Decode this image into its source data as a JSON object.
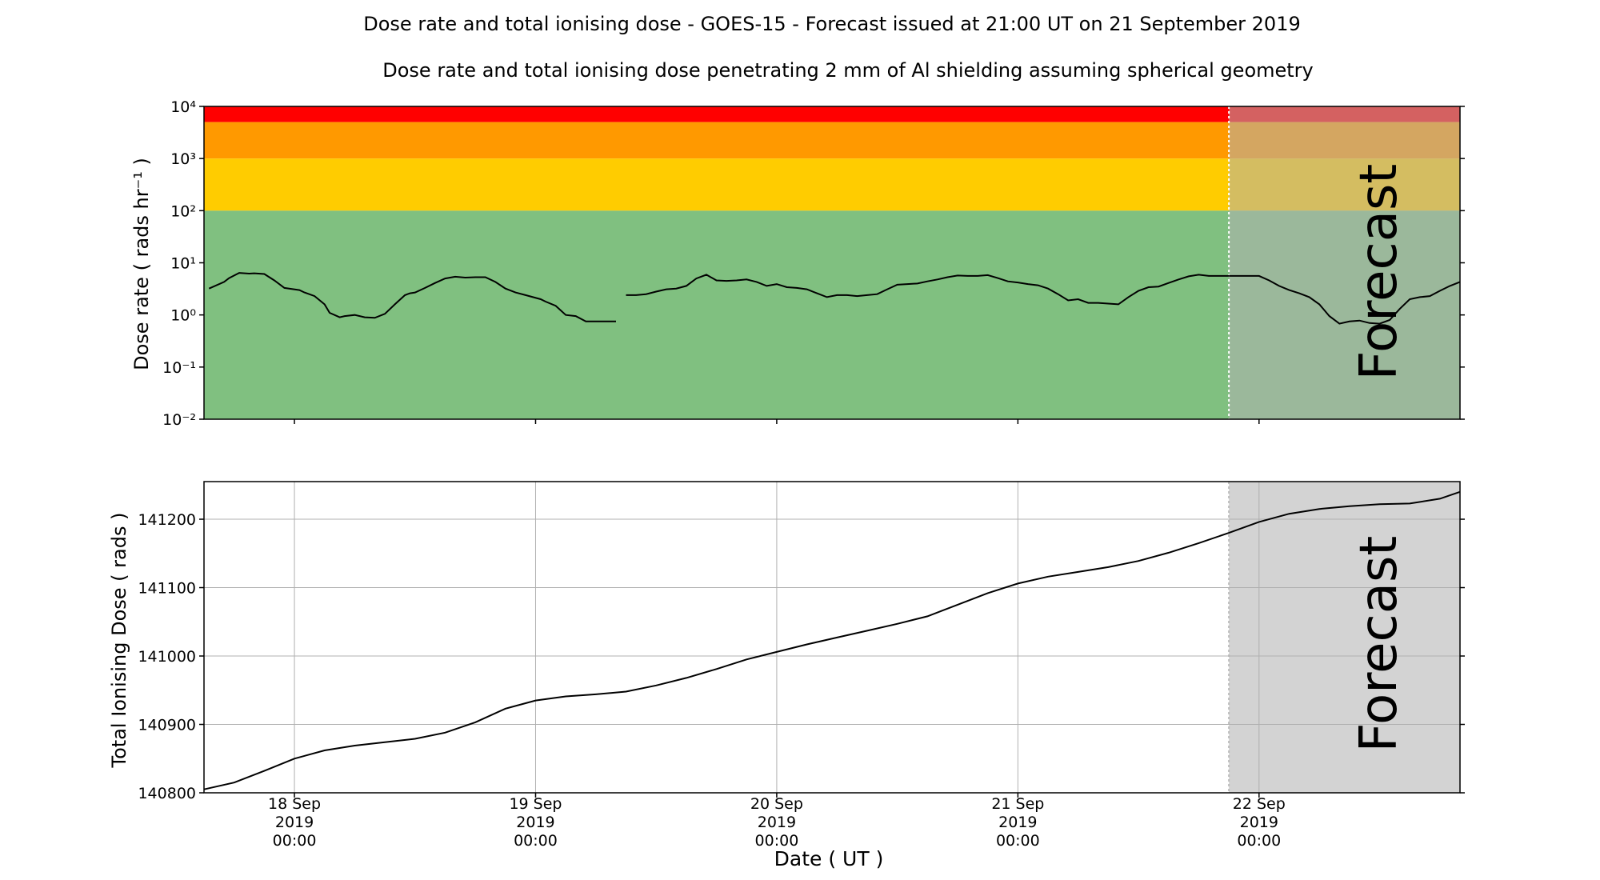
{
  "title": "Dose rate and total ionising dose - GOES-15 - Forecast issued at 21:00 UT on 21 September 2019",
  "subtitle": "Dose rate and total ionising dose penetrating 2 mm of Al shielding assuming spherical geometry",
  "forecast_label": "Forecast",
  "colors": {
    "red": "#ff0000",
    "orange": "#ff9900",
    "yellow": "#ffcc00",
    "green": "#80c080",
    "forecast_overlay": "#b0b0b0",
    "forecast_shade": "#d3d3d3",
    "line": "#000000",
    "grid": "#b0b0b0"
  },
  "chart_data": [
    {
      "type": "line",
      "ylabel": "Dose rate ( rads hr⁻¹ )",
      "yscale": "log",
      "ylim": [
        0.01,
        10000
      ],
      "ytick_labels": [
        "10⁻²",
        "10⁻¹",
        "10⁰",
        "10¹",
        "10²",
        "10³",
        "10⁴"
      ],
      "xlim": [
        "2019-09-17 15:00",
        "2019-09-22 20:00"
      ],
      "forecast_start": "2019-09-21 21:00",
      "bands": [
        {
          "from": 5000,
          "to": 10000,
          "color": "red"
        },
        {
          "from": 1000,
          "to": 5000,
          "color": "orange"
        },
        {
          "from": 100,
          "to": 1000,
          "color": "yellow"
        },
        {
          "from": 0.01,
          "to": 100,
          "color": "green"
        }
      ],
      "series": [
        {
          "segment": 1,
          "x": [
            "2019-09-17 15:30",
            "2019-09-17 17:00",
            "2019-09-17 17:30",
            "2019-09-17 18:30",
            "2019-09-17 19:30",
            "2019-09-17 20:00",
            "2019-09-17 21:00",
            "2019-09-17 22:00",
            "2019-09-17 23:00",
            "2019-09-18 00:30",
            "2019-09-18 01:00",
            "2019-09-18 02:00",
            "2019-09-18 03:00",
            "2019-09-18 03:30",
            "2019-09-18 04:30",
            "2019-09-18 05:00",
            "2019-09-18 06:00",
            "2019-09-18 07:00",
            "2019-09-18 08:00",
            "2019-09-18 09:00",
            "2019-09-18 10:00",
            "2019-09-18 11:00",
            "2019-09-18 11:30",
            "2019-09-18 12:00",
            "2019-09-18 13:00",
            "2019-09-18 14:00",
            "2019-09-18 15:00",
            "2019-09-18 16:00",
            "2019-09-18 17:00",
            "2019-09-18 18:00",
            "2019-09-18 19:00",
            "2019-09-18 20:00",
            "2019-09-18 21:00",
            "2019-09-18 22:00",
            "2019-09-18 23:00",
            "2019-09-19 00:30",
            "2019-09-19 01:00",
            "2019-09-19 02:00",
            "2019-09-19 03:00",
            "2019-09-19 04:00",
            "2019-09-19 05:00",
            "2019-09-19 06:00",
            "2019-09-19 06:30",
            "2019-09-19 07:30",
            "2019-09-19 08:00"
          ],
          "values": [
            3.2,
            4.3,
            5.1,
            6.4,
            6.2,
            6.3,
            6.1,
            4.6,
            3.3,
            3.0,
            2.7,
            2.3,
            1.6,
            1.1,
            0.9,
            0.95,
            1.0,
            0.9,
            0.88,
            1.05,
            1.6,
            2.4,
            2.6,
            2.7,
            3.3,
            4.1,
            5.0,
            5.4,
            5.2,
            5.3,
            5.3,
            4.3,
            3.2,
            2.7,
            2.4,
            2.0,
            1.8,
            1.5,
            1.0,
            0.95,
            0.75,
            0.75,
            0.75,
            0.75,
            0.75
          ]
        },
        {
          "segment": 2,
          "x": [
            "2019-09-19 09:00",
            "2019-09-19 10:00",
            "2019-09-19 11:00",
            "2019-09-19 12:00",
            "2019-09-19 13:00",
            "2019-09-19 14:00",
            "2019-09-19 15:00",
            "2019-09-19 16:00",
            "2019-09-19 17:00",
            "2019-09-19 18:00",
            "2019-09-19 19:00",
            "2019-09-19 20:00",
            "2019-09-19 21:00",
            "2019-09-19 22:00",
            "2019-09-19 23:00",
            "2019-09-20 00:00",
            "2019-09-20 01:00",
            "2019-09-20 02:00",
            "2019-09-20 03:00",
            "2019-09-20 04:00",
            "2019-09-20 05:00",
            "2019-09-20 06:00",
            "2019-09-20 07:00",
            "2019-09-20 08:00",
            "2019-09-20 09:00",
            "2019-09-20 10:00",
            "2019-09-20 11:00",
            "2019-09-20 12:00",
            "2019-09-20 13:00",
            "2019-09-20 14:00",
            "2019-09-20 15:00",
            "2019-09-20 16:00",
            "2019-09-20 17:00",
            "2019-09-20 18:00",
            "2019-09-20 19:00",
            "2019-09-20 20:00",
            "2019-09-20 21:00",
            "2019-09-20 22:00",
            "2019-09-20 23:00",
            "2019-09-21 00:00",
            "2019-09-21 01:00",
            "2019-09-21 02:00",
            "2019-09-21 03:00",
            "2019-09-21 04:00",
            "2019-09-21 05:00",
            "2019-09-21 06:00",
            "2019-09-21 07:00",
            "2019-09-21 08:00",
            "2019-09-21 09:00",
            "2019-09-21 10:00",
            "2019-09-21 11:00",
            "2019-09-21 12:00",
            "2019-09-21 13:00",
            "2019-09-21 14:00",
            "2019-09-21 15:00",
            "2019-09-21 16:00",
            "2019-09-21 17:00",
            "2019-09-21 18:00",
            "2019-09-21 19:00",
            "2019-09-21 20:00",
            "2019-09-21 21:00"
          ],
          "values": [
            2.4,
            2.4,
            2.5,
            2.8,
            3.1,
            3.2,
            3.6,
            5.0,
            5.9,
            4.6,
            4.5,
            4.6,
            4.8,
            4.3,
            3.6,
            3.9,
            3.4,
            3.3,
            3.1,
            2.6,
            2.2,
            2.4,
            2.4,
            2.3,
            2.4,
            2.5,
            3.1,
            3.8,
            3.9,
            4.0,
            4.4,
            4.8,
            5.3,
            5.7,
            5.6,
            5.6,
            5.8,
            5.1,
            4.4,
            4.2,
            3.9,
            3.7,
            3.2,
            2.5,
            1.9,
            2.0,
            1.7,
            1.7,
            1.65,
            1.6,
            2.2,
            2.9,
            3.4,
            3.5,
            4.1,
            4.8,
            5.5,
            5.9,
            5.6,
            5.6,
            5.6
          ]
        },
        {
          "segment": 3,
          "x": [
            "2019-09-21 21:00",
            "2019-09-21 22:00",
            "2019-09-21 23:00",
            "2019-09-22 00:00",
            "2019-09-22 01:00",
            "2019-09-22 02:00",
            "2019-09-22 03:00",
            "2019-09-22 04:00",
            "2019-09-22 05:00",
            "2019-09-22 06:00",
            "2019-09-22 07:00",
            "2019-09-22 08:00",
            "2019-09-22 09:00",
            "2019-09-22 10:00",
            "2019-09-22 11:00",
            "2019-09-22 12:00",
            "2019-09-22 13:00",
            "2019-09-22 14:00",
            "2019-09-22 15:00",
            "2019-09-22 16:00",
            "2019-09-22 17:00",
            "2019-09-22 18:00",
            "2019-09-22 19:00",
            "2019-09-22 20:00"
          ],
          "values": [
            5.6,
            5.6,
            5.6,
            5.6,
            4.6,
            3.6,
            3.0,
            2.6,
            2.2,
            1.6,
            0.95,
            0.68,
            0.75,
            0.78,
            0.7,
            0.68,
            0.8,
            1.3,
            2.0,
            2.2,
            2.3,
            2.9,
            3.6,
            4.3
          ]
        }
      ]
    },
    {
      "type": "line",
      "ylabel": "Total Ionising Dose ( rads )",
      "xlabel": "Date ( UT )",
      "ylim": [
        140800,
        141255
      ],
      "yticks": [
        140800,
        140900,
        141000,
        141100,
        141200
      ],
      "xticks": [
        {
          "at": "2019-09-18 00:00",
          "label": [
            "18 Sep",
            "2019",
            "00:00"
          ]
        },
        {
          "at": "2019-09-19 00:00",
          "label": [
            "19 Sep",
            "2019",
            "00:00"
          ]
        },
        {
          "at": "2019-09-20 00:00",
          "label": [
            "20 Sep",
            "2019",
            "00:00"
          ]
        },
        {
          "at": "2019-09-21 00:00",
          "label": [
            "21 Sep",
            "2019",
            "00:00"
          ]
        },
        {
          "at": "2019-09-22 00:00",
          "label": [
            "22 Sep",
            "2019",
            "00:00"
          ]
        }
      ],
      "xlim": [
        "2019-09-17 15:00",
        "2019-09-22 20:00"
      ],
      "forecast_start": "2019-09-21 21:00",
      "grid": true,
      "series": [
        {
          "x": [
            "2019-09-17 15:00",
            "2019-09-17 18:00",
            "2019-09-17 21:00",
            "2019-09-18 00:00",
            "2019-09-18 03:00",
            "2019-09-18 06:00",
            "2019-09-18 09:00",
            "2019-09-18 12:00",
            "2019-09-18 15:00",
            "2019-09-18 18:00",
            "2019-09-18 21:00",
            "2019-09-19 00:00",
            "2019-09-19 03:00",
            "2019-09-19 06:00",
            "2019-09-19 09:00",
            "2019-09-19 12:00",
            "2019-09-19 15:00",
            "2019-09-19 18:00",
            "2019-09-19 21:00",
            "2019-09-20 00:00",
            "2019-09-20 03:00",
            "2019-09-20 06:00",
            "2019-09-20 09:00",
            "2019-09-20 12:00",
            "2019-09-20 15:00",
            "2019-09-20 18:00",
            "2019-09-20 21:00",
            "2019-09-21 00:00",
            "2019-09-21 03:00",
            "2019-09-21 06:00",
            "2019-09-21 09:00",
            "2019-09-21 12:00",
            "2019-09-21 15:00",
            "2019-09-21 18:00",
            "2019-09-21 21:00",
            "2019-09-22 00:00",
            "2019-09-22 03:00",
            "2019-09-22 06:00",
            "2019-09-22 09:00",
            "2019-09-22 12:00",
            "2019-09-22 15:00",
            "2019-09-22 18:00",
            "2019-09-22 20:00"
          ],
          "values": [
            140805,
            140815,
            140832,
            140850,
            140862,
            140869,
            140874,
            140879,
            140888,
            140903,
            140923,
            140935,
            140941,
            140944,
            140948,
            140957,
            140968,
            140981,
            140995,
            141006,
            141017,
            141027,
            141037,
            141047,
            141058,
            141075,
            141092,
            141106,
            141116,
            141123,
            141130,
            141139,
            141151,
            141165,
            141180,
            141196,
            141208,
            141215,
            141219,
            141222,
            141223,
            141230,
            141240
          ]
        }
      ]
    }
  ]
}
